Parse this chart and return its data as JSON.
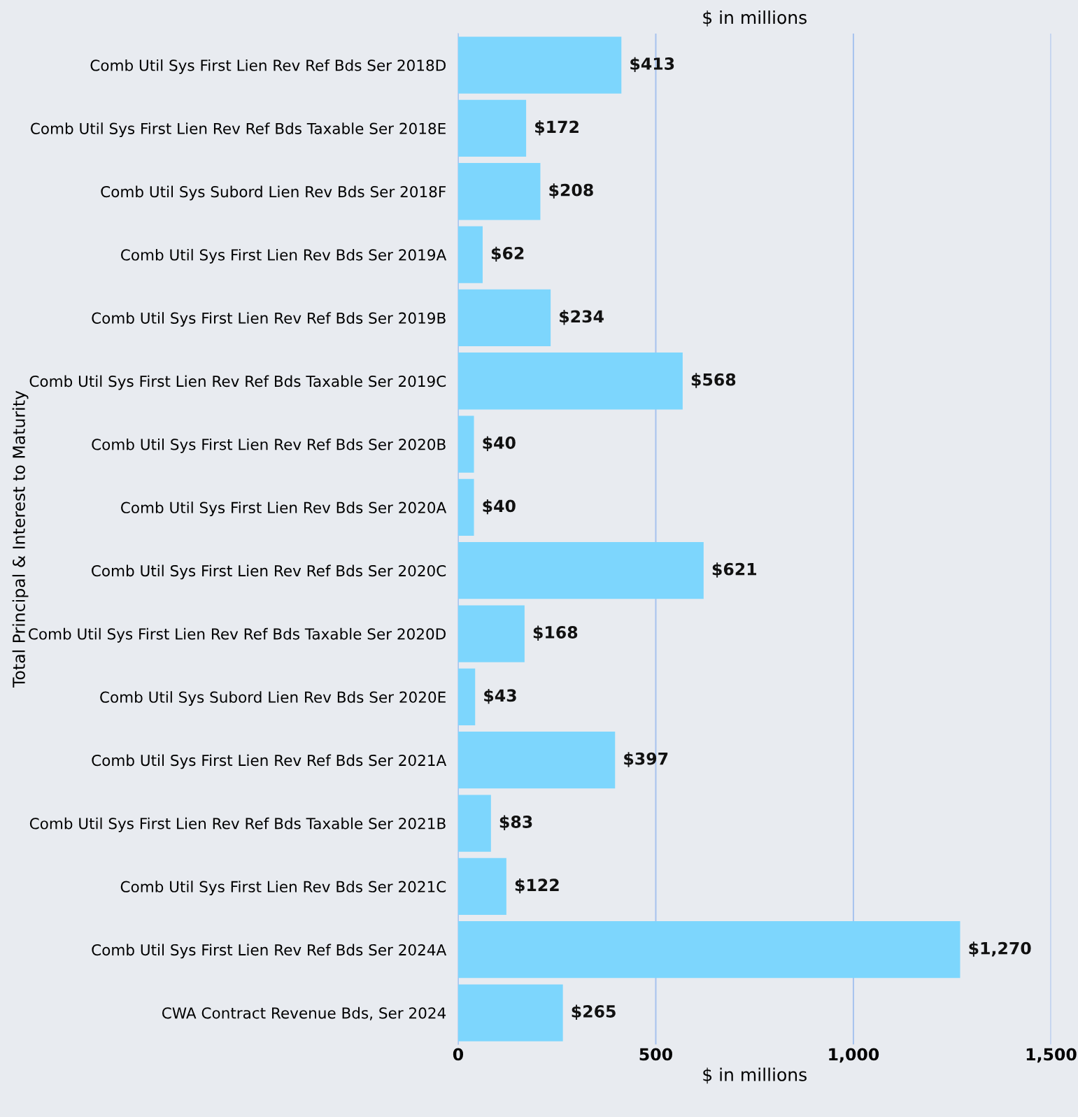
{
  "chart_data": {
    "type": "bar",
    "orientation": "horizontal",
    "xlabel": "$ in millions",
    "x2label": "$ in millions",
    "ylabel": "Total Principal & Interest to Maturity",
    "categories": [
      "Comb Util Sys First Lien Rev Ref Bds Ser 2018D",
      "Comb Util Sys First Lien Rev Ref Bds Taxable Ser 2018E",
      "Comb Util Sys Subord Lien Rev Bds Ser 2018F",
      "Comb Util Sys First Lien Rev Bds Ser 2019A",
      "Comb Util Sys First Lien Rev Ref Bds Ser 2019B",
      "Comb Util Sys First Lien Rev Ref Bds Taxable Ser 2019C",
      "Comb Util Sys First Lien Rev Ref Bds Ser 2020B",
      "Comb Util Sys First Lien Rev Bds Ser 2020A",
      "Comb Util Sys First Lien Rev Ref Bds Ser 2020C",
      "Comb Util Sys First Lien Rev Ref Bds Taxable Ser 2020D",
      "Comb Util Sys Subord Lien Rev Bds Ser 2020E",
      "Comb Util Sys First Lien Rev Ref Bds Ser 2021A",
      "Comb Util Sys First Lien Rev Ref Bds Taxable Ser 2021B",
      "Comb Util Sys First Lien Rev Bds Ser 2021C",
      "Comb Util Sys First Lien Rev Ref Bds Ser 2024A",
      "CWA Contract Revenue Bds, Ser 2024"
    ],
    "values": [
      413,
      172,
      208,
      62,
      234,
      568,
      40,
      40,
      621,
      168,
      43,
      397,
      83,
      122,
      1270,
      265
    ],
    "value_labels": [
      "$413",
      "$172",
      "$208",
      "$62",
      "$234",
      "$568",
      "$40",
      "$40",
      "$621",
      "$168",
      "$43",
      "$397",
      "$83",
      "$122",
      "$1,270",
      "$265"
    ],
    "color": "#7dd6fd",
    "xlim": [
      0,
      1500
    ],
    "xticks": [
      0,
      {
        "value": 500,
        "label": "500"
      },
      {
        "value": 1000,
        "label": "1,000"
      },
      {
        "value": 1500,
        "label": "1,500"
      }
    ],
    "grid": "x",
    "legend": false
  }
}
